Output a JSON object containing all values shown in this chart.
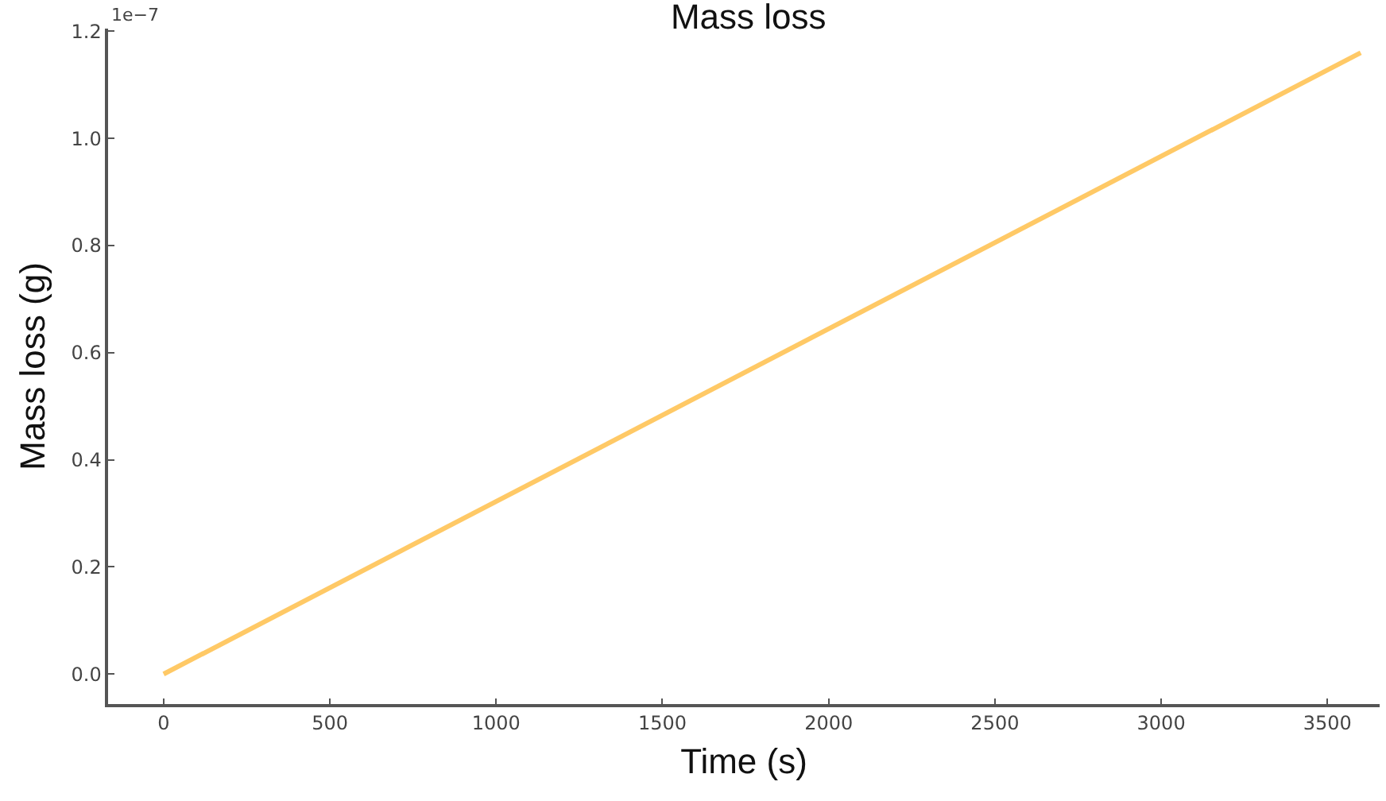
{
  "chart_data": {
    "type": "line",
    "title": "Mass loss",
    "xlabel": "Time (s)",
    "ylabel": "Mass loss (g)",
    "annotations": [
      "1e−7"
    ],
    "x": [
      0,
      3600
    ],
    "series": [
      {
        "color": "#ffc966",
        "values": [
          0,
          1.16
        ]
      }
    ],
    "xlim": [
      -167,
      3657
    ],
    "xticks": [
      0,
      500,
      1000,
      1500,
      2000,
      2500,
      3000,
      3500
    ],
    "ylim": [
      -0.056,
      1.205
    ],
    "yticks": [
      {
        "value": 0,
        "label": "0.0"
      },
      {
        "value": 0.2,
        "label": "0.2"
      },
      {
        "value": 0.4,
        "label": "0.4"
      },
      {
        "value": 0.6,
        "label": "0.6"
      },
      {
        "value": 0.8,
        "label": "0.8"
      },
      {
        "value": 1.0,
        "label": "1.0"
      },
      {
        "value": 1.2,
        "label": "1.2"
      }
    ],
    "marker": "none",
    "line_style": "solid"
  }
}
